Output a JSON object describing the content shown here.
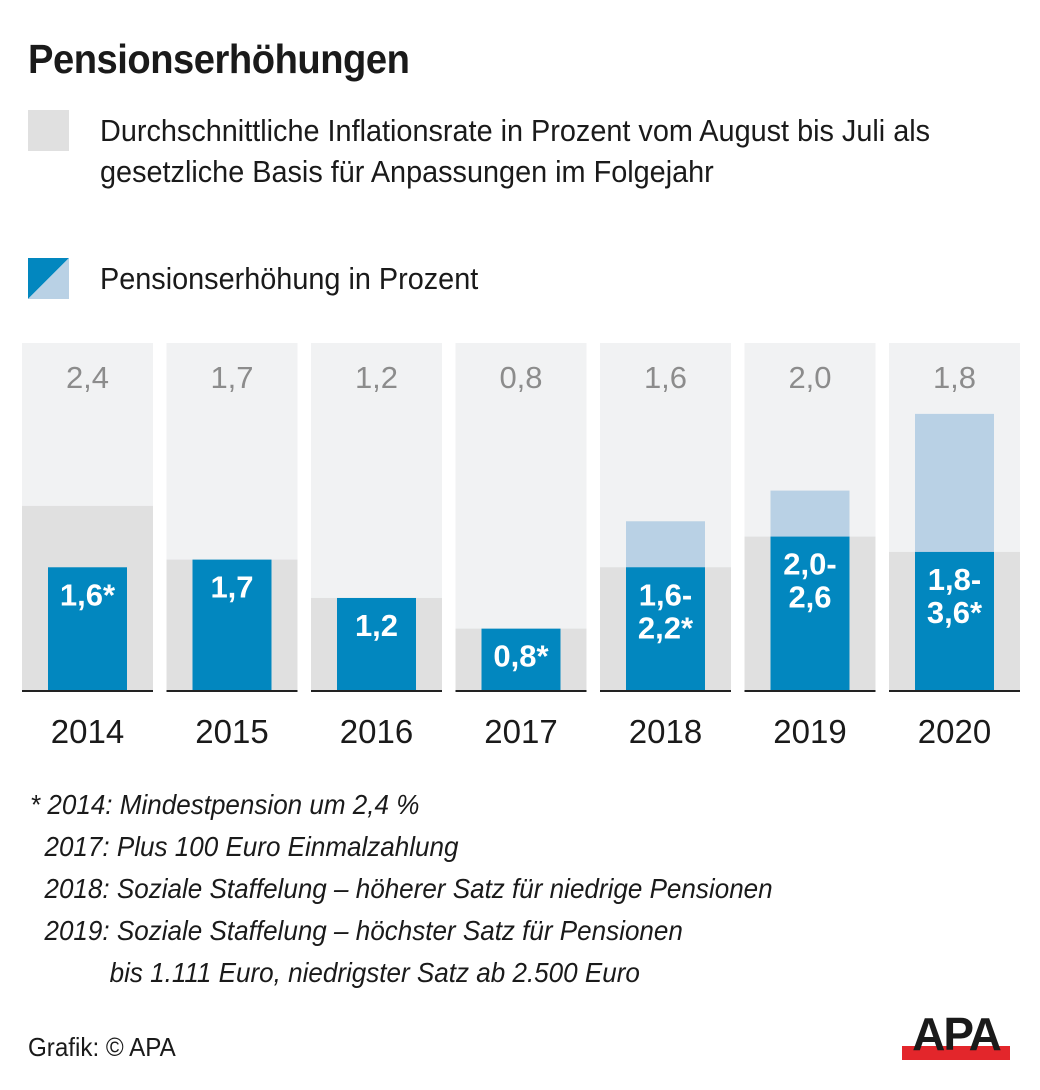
{
  "title": "Pensionserhöhungen",
  "legend": [
    {
      "label": "Durchschnittliche Inflationsrate in Prozent vom August bis Juli als gesetzliche Basis für Anpassungen im Folgejahr",
      "icon": "gray-square-swatch"
    },
    {
      "label": "Pensionserhöhung in Prozent",
      "icon": "blue-split-swatch"
    }
  ],
  "colors": {
    "column_bg": "#f1f2f3",
    "inflation": "#e0e0e0",
    "increase_min": "#0287bf",
    "increase_range": "#b9d1e5",
    "inflation_label": "#8c8c8c",
    "axis": "#222222"
  },
  "chart_data": {
    "type": "bar",
    "title": "Pensionserhöhungen",
    "categories": [
      "2014",
      "2015",
      "2016",
      "2017",
      "2018",
      "2019",
      "2020"
    ],
    "series": [
      {
        "name": "Durchschnittliche Inflationsrate in Prozent",
        "values": [
          2.4,
          1.7,
          1.2,
          0.8,
          1.6,
          2.0,
          1.8
        ],
        "labels": [
          "2,4",
          "1,7",
          "1,2",
          "0,8",
          "1,6",
          "2,0",
          "1,8"
        ]
      },
      {
        "name": "Pensionserhöhung in Prozent (min)",
        "values": [
          1.6,
          1.7,
          1.2,
          0.8,
          1.6,
          2.0,
          1.8
        ]
      },
      {
        "name": "Pensionserhöhung in Prozent (max)",
        "values": [
          1.6,
          1.7,
          1.2,
          0.8,
          2.2,
          2.6,
          3.6
        ]
      }
    ],
    "increase_labels": [
      [
        "1,6*"
      ],
      [
        "1,7"
      ],
      [
        "1,2"
      ],
      [
        "0,8*"
      ],
      [
        "1,6-",
        "2,2*"
      ],
      [
        "2,0-",
        "2,6"
      ],
      [
        "1,8-",
        "3,6*"
      ]
    ],
    "xlabel": "",
    "ylabel": "",
    "ylim": [
      0,
      4.5
    ],
    "grid": false,
    "legend_position": "top"
  },
  "footnotes": [
    "* 2014: Mindestpension um 2,4 %",
    "  2017: Plus 100 Euro Einmalzahlung",
    "  2018: Soziale Staffelung – höherer Satz für niedrige Pensionen",
    "  2019: Soziale Staffelung – höchster Satz für Pensionen",
    "           bis 1.111 Euro, niedrigster Satz ab 2.500 Euro"
  ],
  "credit": "Grafik: © APA",
  "logo_text": "APA"
}
